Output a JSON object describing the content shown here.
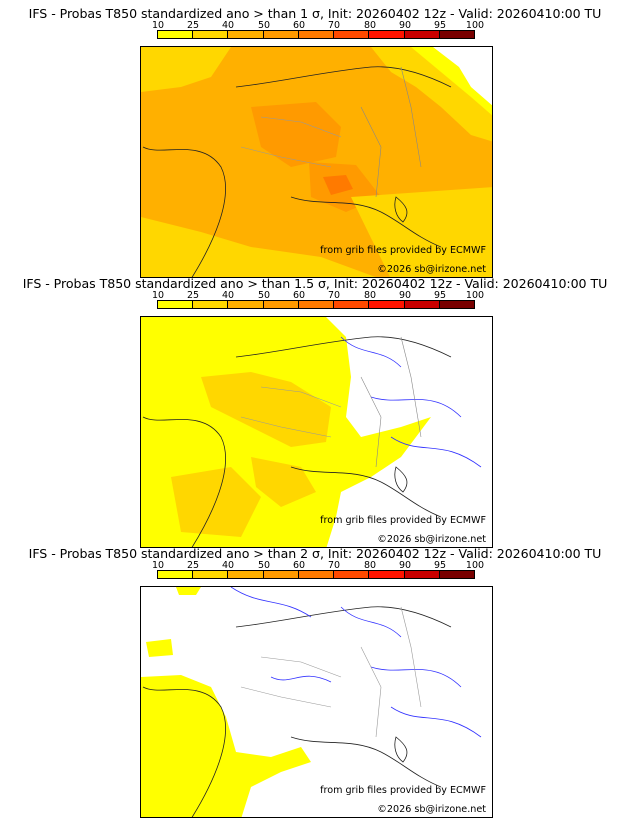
{
  "colorbar": {
    "labels": [
      "10",
      "25",
      "40",
      "50",
      "60",
      "70",
      "80",
      "90",
      "95",
      "100"
    ],
    "colors": [
      "#ffff00",
      "#ffd700",
      "#ffb000",
      "#ff9a00",
      "#ff7a00",
      "#ff4a00",
      "#ff1400",
      "#c80000",
      "#780000"
    ]
  },
  "panels": [
    {
      "title": "IFS - Probas T850  standardized ano > than 1 σ, Init: 20260402 12z - Valid: 20260410:00 TU",
      "source_credit": "from grib files provided by ECMWF",
      "copyright": "©2026 sb@irizone.net",
      "fill_levels": [
        "40-50",
        "50-60",
        "60-70"
      ]
    },
    {
      "title": "IFS - Probas T850  standardized ano > than 1.5 σ, Init: 20260402 12z - Valid: 20260410:00 TU",
      "source_credit": "from grib files provided by ECMWF",
      "copyright": "©2026 sb@irizone.net",
      "fill_levels": [
        "10-25",
        "25-40"
      ]
    },
    {
      "title": "IFS - Probas T850  standardized ano > than 2 σ, Init: 20260402 12z - Valid: 20260410:00 TU",
      "source_credit": "from grib files provided by ECMWF",
      "copyright": "©2026 sb@irizone.net",
      "fill_levels": [
        "10-25"
      ]
    }
  ]
}
